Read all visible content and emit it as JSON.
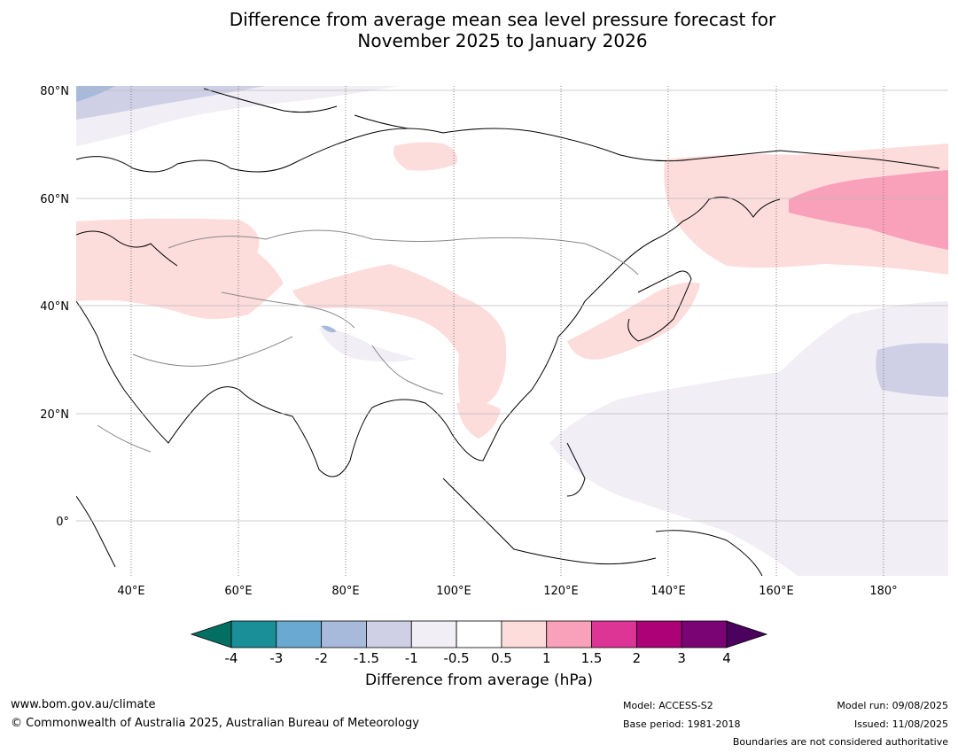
{
  "title": {
    "line1": "Difference from average mean sea level pressure forecast for",
    "line2": "November 2025 to January 2026"
  },
  "map": {
    "lat_labels": [
      "80°N",
      "60°N",
      "40°N",
      "20°N",
      "0°"
    ],
    "lon_labels": [
      "40°E",
      "60°E",
      "80°E",
      "100°E",
      "120°E",
      "140°E",
      "160°E",
      "180°"
    ]
  },
  "colorbar": {
    "title": "Difference from average (hPa)",
    "tick_labels": [
      "-4",
      "-3",
      "-2",
      "-1.5",
      "-1",
      "-0.5",
      "0.5",
      "1",
      "1.5",
      "2",
      "3",
      "4"
    ],
    "colors": [
      "#1a8f98",
      "#6aaad2",
      "#a8badb",
      "#cfd0e6",
      "#f2eef5",
      "#ffffff",
      "#fddcdc",
      "#f9a0ba",
      "#dc3596",
      "#ad0178",
      "#7b0474"
    ],
    "extend_low_color": "#036e62",
    "extend_high_color": "#4a025e"
  },
  "footer": {
    "website": "www.bom.gov.au/climate",
    "copyright": "© Commonwealth of Australia 2025, Australian Bureau of Meteorology",
    "model": "Model: ACCESS-S2",
    "base_period": "Base period: 1981-2018",
    "model_run": "Model run: 09/08/2025",
    "issued": "Issued: 11/08/2025",
    "disclaimer": "Boundaries are not considered authoritative"
  }
}
